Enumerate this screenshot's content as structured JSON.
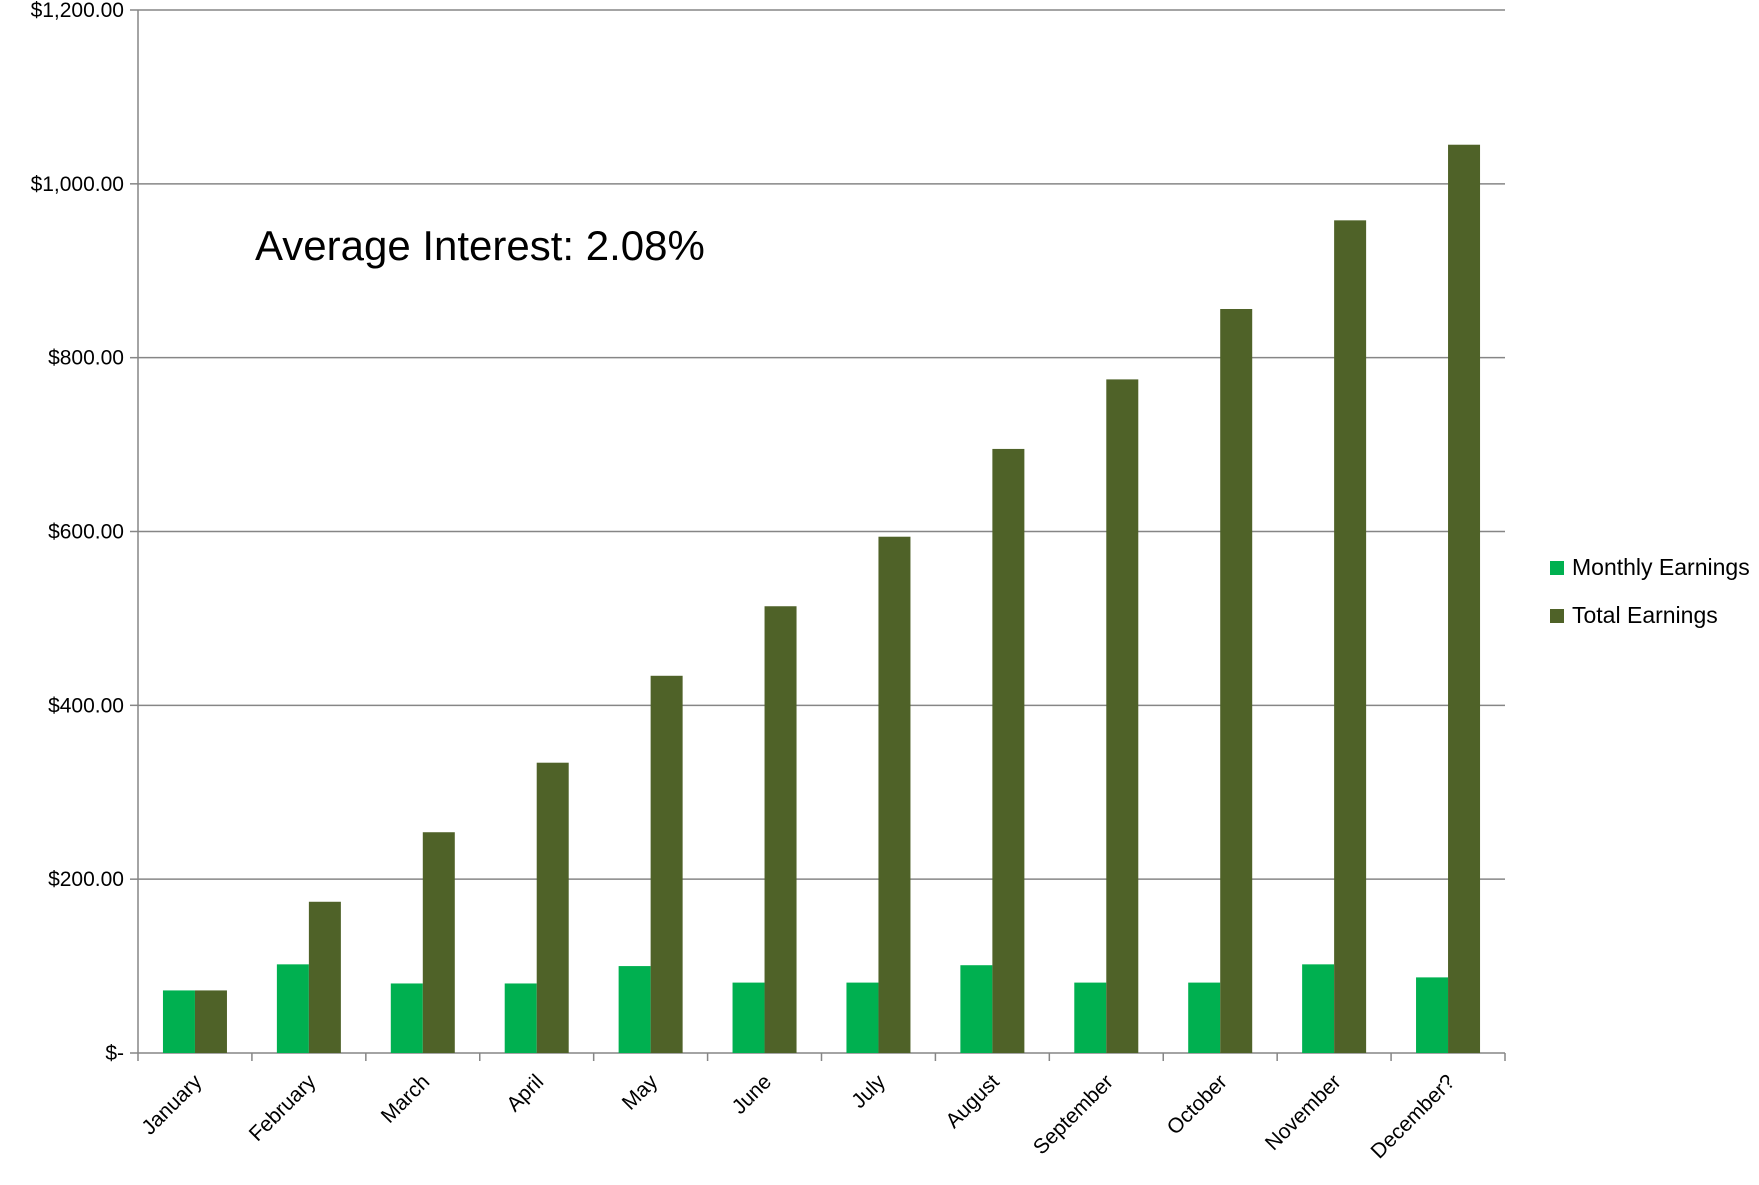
{
  "chart_data": {
    "type": "bar",
    "categories": [
      "January",
      "February",
      "March",
      "April",
      "May",
      "June",
      "July",
      "August",
      "September",
      "October",
      "November",
      "December?"
    ],
    "series": [
      {
        "name": "Monthly Earnings",
        "color": "#00B050",
        "values": [
          72,
          102,
          80,
          80,
          100,
          81,
          81,
          101,
          81,
          81,
          102,
          87
        ]
      },
      {
        "name": "Total Earnings",
        "color": "#4F6228",
        "values": [
          72,
          174,
          254,
          334,
          434,
          514,
          594,
          695,
          775,
          856,
          958,
          1045
        ]
      }
    ],
    "ylim": [
      0,
      1200
    ],
    "yticks": [
      {
        "value": 0,
        "label": "$-"
      },
      {
        "value": 200,
        "label": "$200.00"
      },
      {
        "value": 400,
        "label": "$400.00"
      },
      {
        "value": 600,
        "label": "$600.00"
      },
      {
        "value": 800,
        "label": "$800.00"
      },
      {
        "value": 1000,
        "label": "$1,000.00"
      },
      {
        "value": 1200,
        "label": "$1,200.00"
      }
    ],
    "annotation": "Average Interest: 2.08%",
    "grid": true,
    "legend_position": "right"
  }
}
